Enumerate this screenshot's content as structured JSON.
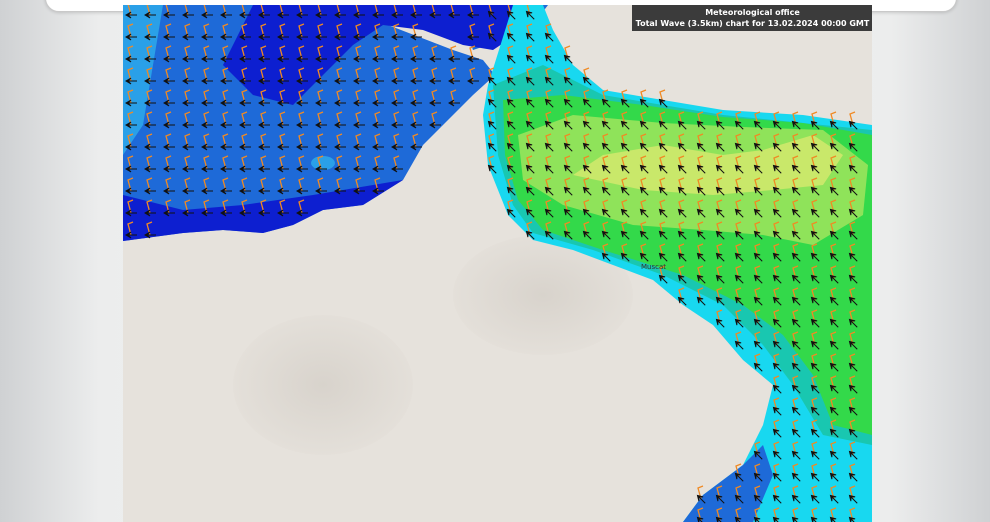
{
  "header": {
    "office": "Meteorological office",
    "chart_title": "Total Wave (3.5km) chart for 13.02.2024 00:00 GMT"
  },
  "map": {
    "labels": {
      "city": "Muscat"
    },
    "colors": {
      "land": "#e6e2dc",
      "deep_blue": "#0d1fd0",
      "mid_blue": "#1e6ad8",
      "light_blue": "#2aa0e8",
      "cyan": "#18d8f0",
      "teal": "#19c7b0",
      "green": "#33d94a",
      "light_green": "#8fe35a",
      "yellow_green": "#c9e86a",
      "wind_barb": "#f08a24",
      "wave_arrow": "#111111"
    }
  }
}
